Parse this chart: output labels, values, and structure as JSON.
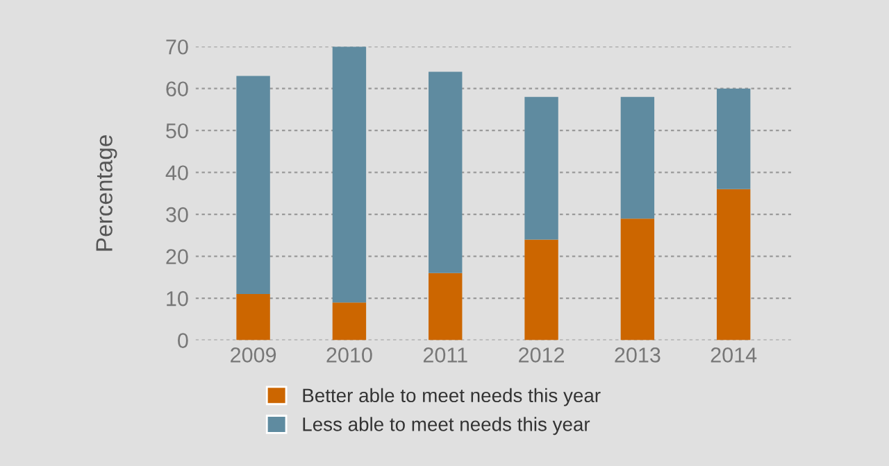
{
  "chart_data": {
    "type": "bar",
    "stacked": true,
    "ylabel": "Percentage",
    "categories": [
      "2009",
      "2010",
      "2011",
      "2012",
      "2013",
      "2014"
    ],
    "series": [
      {
        "name": "Better able to meet needs this year",
        "color": "#cc6600",
        "values": [
          11,
          9,
          16,
          24,
          29,
          36
        ]
      },
      {
        "name": "Less able to meet needs this year",
        "color": "#5f8ba0",
        "values": [
          52,
          61,
          48,
          34,
          29,
          24
        ]
      }
    ],
    "ylim": [
      0,
      70
    ],
    "yticks": [
      0,
      10,
      20,
      30,
      40,
      50,
      60,
      70
    ],
    "grid": "y",
    "legend": "bottom"
  }
}
